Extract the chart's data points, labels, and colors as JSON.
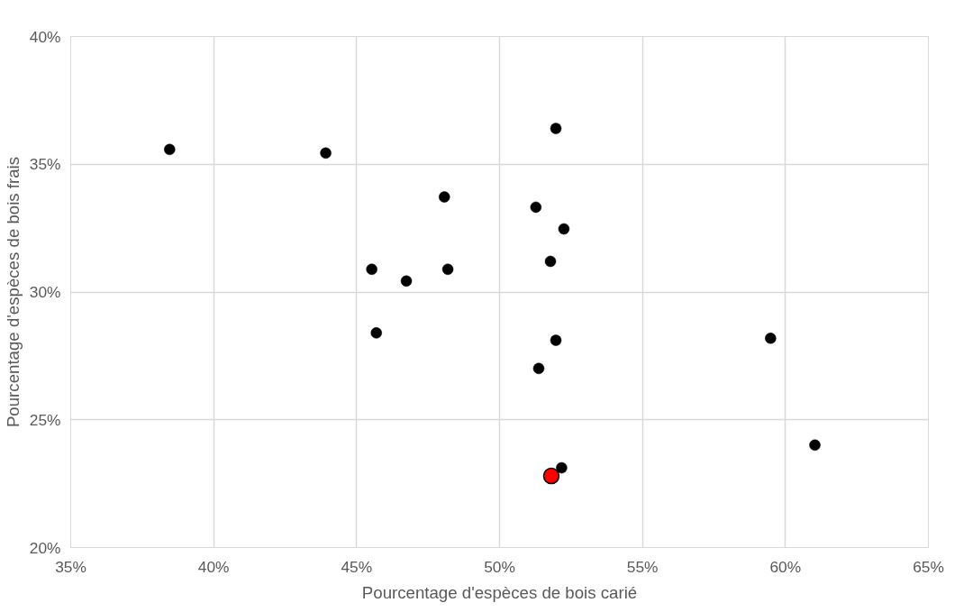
{
  "chart_data": {
    "type": "scatter",
    "xlabel": "Pourcentage d'espèces de bois carié",
    "ylabel": "Pourcentage d'espèces de bois frais",
    "xlim": [
      35,
      65
    ],
    "ylim": [
      20,
      40
    ],
    "xticks": [
      {
        "value": 35,
        "label": "35%"
      },
      {
        "value": 40,
        "label": "40%"
      },
      {
        "value": 45,
        "label": "45%"
      },
      {
        "value": 50,
        "label": "50%"
      },
      {
        "value": 55,
        "label": "55%"
      },
      {
        "value": 60,
        "label": "60%"
      },
      {
        "value": 65,
        "label": "65%"
      }
    ],
    "yticks": [
      {
        "value": 20,
        "label": "20%"
      },
      {
        "value": 25,
        "label": "25%"
      },
      {
        "value": 30,
        "label": "30%"
      },
      {
        "value": 35,
        "label": "35%"
      },
      {
        "value": 40,
        "label": "40%"
      }
    ],
    "grid": true,
    "marker": "circle",
    "series": [
      {
        "color": "#000000",
        "x": [
          38.46,
          43.92,
          48.07,
          45.53,
          46.74,
          48.19,
          45.69,
          51.97,
          51.27,
          52.25,
          51.78,
          51.97,
          51.37,
          59.48,
          61.03,
          52.17
        ],
        "values": [
          35.58,
          35.44,
          33.72,
          30.89,
          30.43,
          30.89,
          28.4,
          36.4,
          33.32,
          32.47,
          31.2,
          28.11,
          27.01,
          28.19,
          24.01,
          23.12
        ]
      },
      {
        "color": "#ff0000",
        "x": [
          51.81
        ],
        "values": [
          22.8
        ]
      }
    ]
  }
}
